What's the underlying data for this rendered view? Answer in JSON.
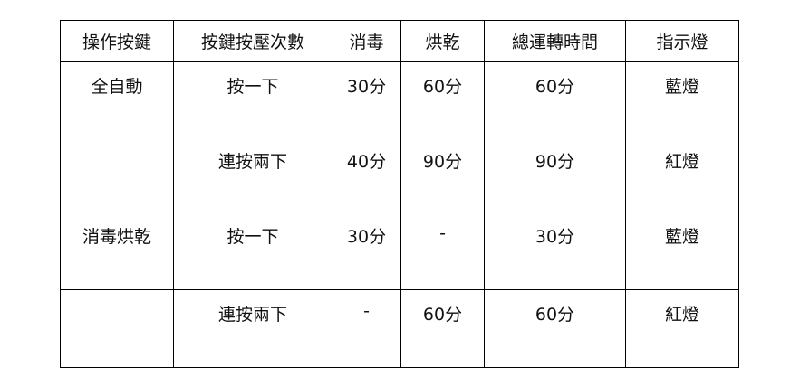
{
  "headers": [
    "操作按鍵",
    "按鍵按壓次數",
    "消毒",
    "烘乾",
    "總運轉時間",
    "指示燈"
  ],
  "rows": [
    [
      "全自動",
      "按一下",
      "30分",
      "60分",
      "60分",
      "藍燈"
    ],
    [
      "",
      "連按兩下",
      "40分",
      "90分",
      "90分",
      "紅燈"
    ],
    [
      "消毒烘乾",
      "按一下",
      "30分",
      "-",
      "30分",
      "藍燈"
    ],
    [
      "",
      "連按兩下",
      "-",
      "60分",
      "60分",
      "紅燈"
    ]
  ]
}
